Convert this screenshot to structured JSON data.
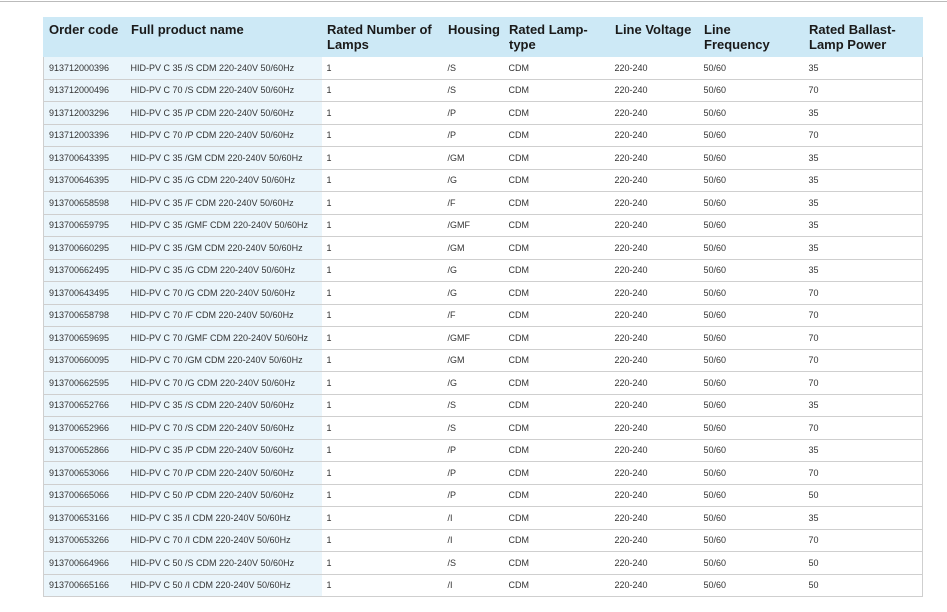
{
  "table": {
    "columns": [
      "Order code",
      "Full product name",
      "Rated Number of Lamps",
      "Housing",
      "Rated Lamp-type",
      "Line Voltage",
      "Line Frequency",
      "Rated Ballast-Lamp Power"
    ],
    "rows": [
      [
        "913712000396",
        "HID-PV C 35 /S CDM 220-240V 50/60Hz",
        "1",
        "/S",
        "CDM",
        "220-240",
        "50/60",
        "35"
      ],
      [
        "913712000496",
        "HID-PV C 70 /S CDM 220-240V 50/60Hz",
        "1",
        "/S",
        "CDM",
        "220-240",
        "50/60",
        "70"
      ],
      [
        "913712003296",
        "HID-PV C 35 /P CDM 220-240V 50/60Hz",
        "1",
        "/P",
        "CDM",
        "220-240",
        "50/60",
        "35"
      ],
      [
        "913712003396",
        "HID-PV C 70 /P CDM 220-240V 50/60Hz",
        "1",
        "/P",
        "CDM",
        "220-240",
        "50/60",
        "70"
      ],
      [
        "913700643395",
        "HID-PV C 35 /GM CDM 220-240V 50/60Hz",
        "1",
        "/GM",
        "CDM",
        "220-240",
        "50/60",
        "35"
      ],
      [
        "913700646395",
        "HID-PV C 35 /G CDM 220-240V 50/60Hz",
        "1",
        "/G",
        "CDM",
        "220-240",
        "50/60",
        "35"
      ],
      [
        "913700658598",
        "HID-PV C 35 /F CDM 220-240V 50/60Hz",
        "1",
        "/F",
        "CDM",
        "220-240",
        "50/60",
        "35"
      ],
      [
        "913700659795",
        "HID-PV C 35 /GMF CDM 220-240V 50/60Hz",
        "1",
        "/GMF",
        "CDM",
        "220-240",
        "50/60",
        "35"
      ],
      [
        "913700660295",
        "HID-PV C 35 /GM CDM 220-240V 50/60Hz",
        "1",
        "/GM",
        "CDM",
        "220-240",
        "50/60",
        "35"
      ],
      [
        "913700662495",
        "HID-PV C 35 /G CDM 220-240V 50/60Hz",
        "1",
        "/G",
        "CDM",
        "220-240",
        "50/60",
        "35"
      ],
      [
        "913700643495",
        "HID-PV C 70 /G CDM 220-240V 50/60Hz",
        "1",
        "/G",
        "CDM",
        "220-240",
        "50/60",
        "70"
      ],
      [
        "913700658798",
        "HID-PV C 70 /F CDM 220-240V 50/60Hz",
        "1",
        "/F",
        "CDM",
        "220-240",
        "50/60",
        "70"
      ],
      [
        "913700659695",
        "HID-PV C 70 /GMF CDM 220-240V 50/60Hz",
        "1",
        "/GMF",
        "CDM",
        "220-240",
        "50/60",
        "70"
      ],
      [
        "913700660095",
        "HID-PV C 70 /GM CDM 220-240V 50/60Hz",
        "1",
        "/GM",
        "CDM",
        "220-240",
        "50/60",
        "70"
      ],
      [
        "913700662595",
        "HID-PV C 70 /G CDM 220-240V 50/60Hz",
        "1",
        "/G",
        "CDM",
        "220-240",
        "50/60",
        "70"
      ],
      [
        "913700652766",
        "HID-PV C 35 /S CDM 220-240V 50/60Hz",
        "1",
        "/S",
        "CDM",
        "220-240",
        "50/60",
        "35"
      ],
      [
        "913700652966",
        "HID-PV C 70 /S CDM 220-240V 50/60Hz",
        "1",
        "/S",
        "CDM",
        "220-240",
        "50/60",
        "70"
      ],
      [
        "913700652866",
        "HID-PV C 35 /P CDM 220-240V 50/60Hz",
        "1",
        "/P",
        "CDM",
        "220-240",
        "50/60",
        "35"
      ],
      [
        "913700653066",
        "HID-PV C 70 /P CDM 220-240V 50/60Hz",
        "1",
        "/P",
        "CDM",
        "220-240",
        "50/60",
        "70"
      ],
      [
        "913700665066",
        "HID-PV C 50 /P CDM 220-240V 50/60Hz",
        "1",
        "/P",
        "CDM",
        "220-240",
        "50/60",
        "50"
      ],
      [
        "913700653166",
        "HID-PV C 35 /I CDM 220-240V 50/60Hz",
        "1",
        "/I",
        "CDM",
        "220-240",
        "50/60",
        "35"
      ],
      [
        "913700653266",
        "HID-PV C 70 /I CDM 220-240V 50/60Hz",
        "1",
        "/I",
        "CDM",
        "220-240",
        "50/60",
        "70"
      ],
      [
        "913700664966",
        "HID-PV C 50 /S CDM 220-240V 50/60Hz",
        "1",
        "/S",
        "CDM",
        "220-240",
        "50/60",
        "50"
      ],
      [
        "913700665166",
        "HID-PV C 50 /I CDM 220-240V 50/60Hz",
        "1",
        "/I",
        "CDM",
        "220-240",
        "50/60",
        "50"
      ]
    ]
  }
}
